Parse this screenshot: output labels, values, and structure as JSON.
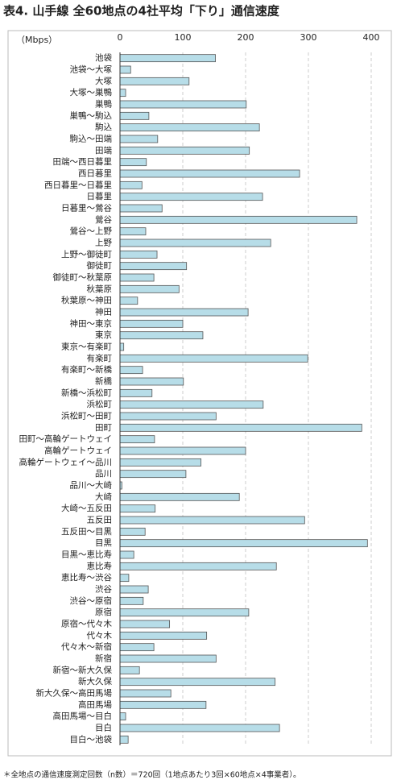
{
  "chart_data": {
    "type": "hbar",
    "title": "表4. 山手線 全60地点の4社平均「下り」通信速度",
    "unit_label": "（Mbps）",
    "categories": [
      "池袋",
      "池袋～大塚",
      "大塚",
      "大塚～巣鴨",
      "巣鴨",
      "巣鴨～駒込",
      "駒込",
      "駒込～田端",
      "田端",
      "田端～西日暮里",
      "西日暮里",
      "西日暮里～日暮里",
      "日暮里",
      "日暮里～鶯谷",
      "鶯谷",
      "鶯谷～上野",
      "上野",
      "上野～御徒町",
      "御徒町",
      "御徒町～秋葉原",
      "秋葉原",
      "秋葉原～神田",
      "神田",
      "神田～東京",
      "東京",
      "東京～有楽町",
      "有楽町",
      "有楽町～新橋",
      "新橋",
      "新橋～浜松町",
      "浜松町",
      "浜松町～田町",
      "田町",
      "田町～高輪ゲートウェイ",
      "高輪ゲートウェイ",
      "高輪ゲートウェイ～品川",
      "品川",
      "品川～大崎",
      "大崎",
      "大崎～五反田",
      "五反田",
      "五反田～目黒",
      "目黒",
      "目黒～恵比寿",
      "恵比寿",
      "恵比寿～渋谷",
      "渋谷",
      "渋谷～原宿",
      "原宿",
      "原宿～代々木",
      "代々木",
      "代々木～新宿",
      "新宿",
      "新宿～新大久保",
      "新大久保",
      "新大久保～高田馬場",
      "高田馬場",
      "高田馬場～目白",
      "目白",
      "目白～池袋"
    ],
    "values": [
      152,
      17,
      110,
      9,
      201,
      46,
      222,
      60,
      206,
      42,
      286,
      35,
      227,
      67,
      377,
      41,
      240,
      59,
      106,
      54,
      94,
      28,
      204,
      100,
      132,
      6,
      299,
      36,
      101,
      51,
      228,
      153,
      385,
      55,
      200,
      129,
      105,
      3,
      190,
      56,
      294,
      40,
      394,
      22,
      249,
      14,
      45,
      37,
      205,
      79,
      138,
      54,
      153,
      31,
      247,
      81,
      137,
      9,
      254,
      13
    ],
    "color": "#b7dde8",
    "xlim": [
      0,
      400
    ],
    "xticks": [
      0,
      100,
      200,
      300,
      400
    ],
    "grid": true,
    "footnote": "＊全地点の通信速度測定回数（n数）＝720回（1地点あたり3回×60地点×4事業者）。"
  }
}
